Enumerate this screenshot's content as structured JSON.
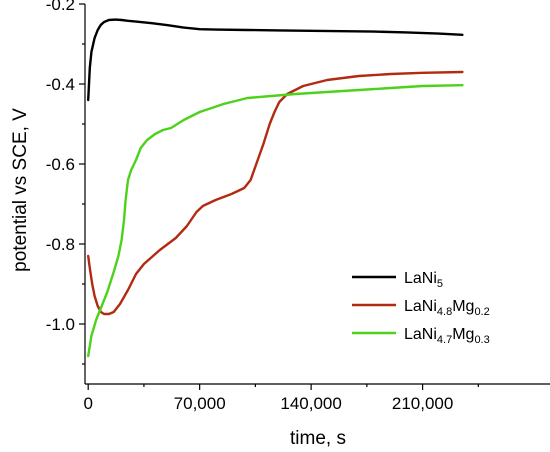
{
  "chart_data": {
    "type": "line",
    "xlabel": "time, s",
    "ylabel": "potential vs SCE, V",
    "xlim": [
      -2000,
      290000
    ],
    "ylim": [
      -1.15,
      -0.2
    ],
    "x_ticks": [
      0,
      70000,
      140000,
      210000
    ],
    "x_tick_labels": [
      "0",
      "70,000",
      "140,000",
      "210,000"
    ],
    "y_ticks": [
      -0.2,
      -0.4,
      -0.6,
      -0.8,
      -1.0
    ],
    "y_tick_labels": [
      "-0.2",
      "-0.4",
      "-0.6",
      "-0.8",
      "-1.0"
    ],
    "legend_position": "bottom-right",
    "series": [
      {
        "name": "LaNi5",
        "legend": {
          "base": "LaNi",
          "sub1": "5",
          "mid": "",
          "sub2": ""
        },
        "color": "#000000",
        "points": [
          [
            0,
            -0.44
          ],
          [
            1000,
            -0.36
          ],
          [
            2000,
            -0.32
          ],
          [
            4000,
            -0.285
          ],
          [
            6000,
            -0.265
          ],
          [
            8000,
            -0.252
          ],
          [
            10000,
            -0.245
          ],
          [
            13000,
            -0.24
          ],
          [
            17000,
            -0.239
          ],
          [
            21000,
            -0.24
          ],
          [
            25000,
            -0.242
          ],
          [
            30000,
            -0.244
          ],
          [
            40000,
            -0.248
          ],
          [
            50000,
            -0.253
          ],
          [
            60000,
            -0.259
          ],
          [
            70000,
            -0.263
          ],
          [
            80000,
            -0.264
          ],
          [
            100000,
            -0.265
          ],
          [
            120000,
            -0.266
          ],
          [
            140000,
            -0.267
          ],
          [
            160000,
            -0.268
          ],
          [
            180000,
            -0.269
          ],
          [
            200000,
            -0.271
          ],
          [
            220000,
            -0.274
          ],
          [
            235000,
            -0.277
          ]
        ]
      },
      {
        "name": "LaNi4.8Mg0.2",
        "legend": {
          "base": "LaNi",
          "sub1": "4.8",
          "mid": "Mg",
          "sub2": "0.2"
        },
        "color": "#b22a10",
        "points": [
          [
            0,
            -0.83
          ],
          [
            1000,
            -0.86
          ],
          [
            2500,
            -0.9
          ],
          [
            4000,
            -0.93
          ],
          [
            6000,
            -0.955
          ],
          [
            8000,
            -0.97
          ],
          [
            10000,
            -0.975
          ],
          [
            13000,
            -0.975
          ],
          [
            16000,
            -0.97
          ],
          [
            20000,
            -0.95
          ],
          [
            25000,
            -0.915
          ],
          [
            30000,
            -0.875
          ],
          [
            35000,
            -0.85
          ],
          [
            45000,
            -0.815
          ],
          [
            55000,
            -0.785
          ],
          [
            62000,
            -0.755
          ],
          [
            68000,
            -0.72
          ],
          [
            72000,
            -0.705
          ],
          [
            80000,
            -0.69
          ],
          [
            90000,
            -0.675
          ],
          [
            98000,
            -0.66
          ],
          [
            102000,
            -0.64
          ],
          [
            106000,
            -0.595
          ],
          [
            110000,
            -0.55
          ],
          [
            114000,
            -0.5
          ],
          [
            117000,
            -0.47
          ],
          [
            120000,
            -0.445
          ],
          [
            125000,
            -0.425
          ],
          [
            135000,
            -0.405
          ],
          [
            150000,
            -0.39
          ],
          [
            170000,
            -0.38
          ],
          [
            190000,
            -0.375
          ],
          [
            210000,
            -0.372
          ],
          [
            235000,
            -0.37
          ]
        ]
      },
      {
        "name": "LaNi4.7Mg0.3",
        "legend": {
          "base": "LaNi",
          "sub1": "4.7",
          "mid": "Mg",
          "sub2": "0.3"
        },
        "color": "#4dd21c",
        "points": [
          [
            0,
            -1.08
          ],
          [
            2000,
            -1.03
          ],
          [
            5000,
            -0.99
          ],
          [
            8000,
            -0.96
          ],
          [
            12000,
            -0.92
          ],
          [
            16000,
            -0.87
          ],
          [
            19000,
            -0.83
          ],
          [
            21000,
            -0.79
          ],
          [
            22500,
            -0.74
          ],
          [
            23500,
            -0.69
          ],
          [
            25000,
            -0.64
          ],
          [
            27000,
            -0.615
          ],
          [
            30000,
            -0.59
          ],
          [
            33000,
            -0.56
          ],
          [
            37000,
            -0.54
          ],
          [
            42000,
            -0.525
          ],
          [
            47000,
            -0.515
          ],
          [
            52000,
            -0.51
          ],
          [
            60000,
            -0.49
          ],
          [
            70000,
            -0.47
          ],
          [
            85000,
            -0.45
          ],
          [
            100000,
            -0.435
          ],
          [
            115000,
            -0.43
          ],
          [
            130000,
            -0.425
          ],
          [
            150000,
            -0.42
          ],
          [
            170000,
            -0.415
          ],
          [
            190000,
            -0.41
          ],
          [
            210000,
            -0.405
          ],
          [
            235000,
            -0.403
          ]
        ]
      }
    ]
  }
}
